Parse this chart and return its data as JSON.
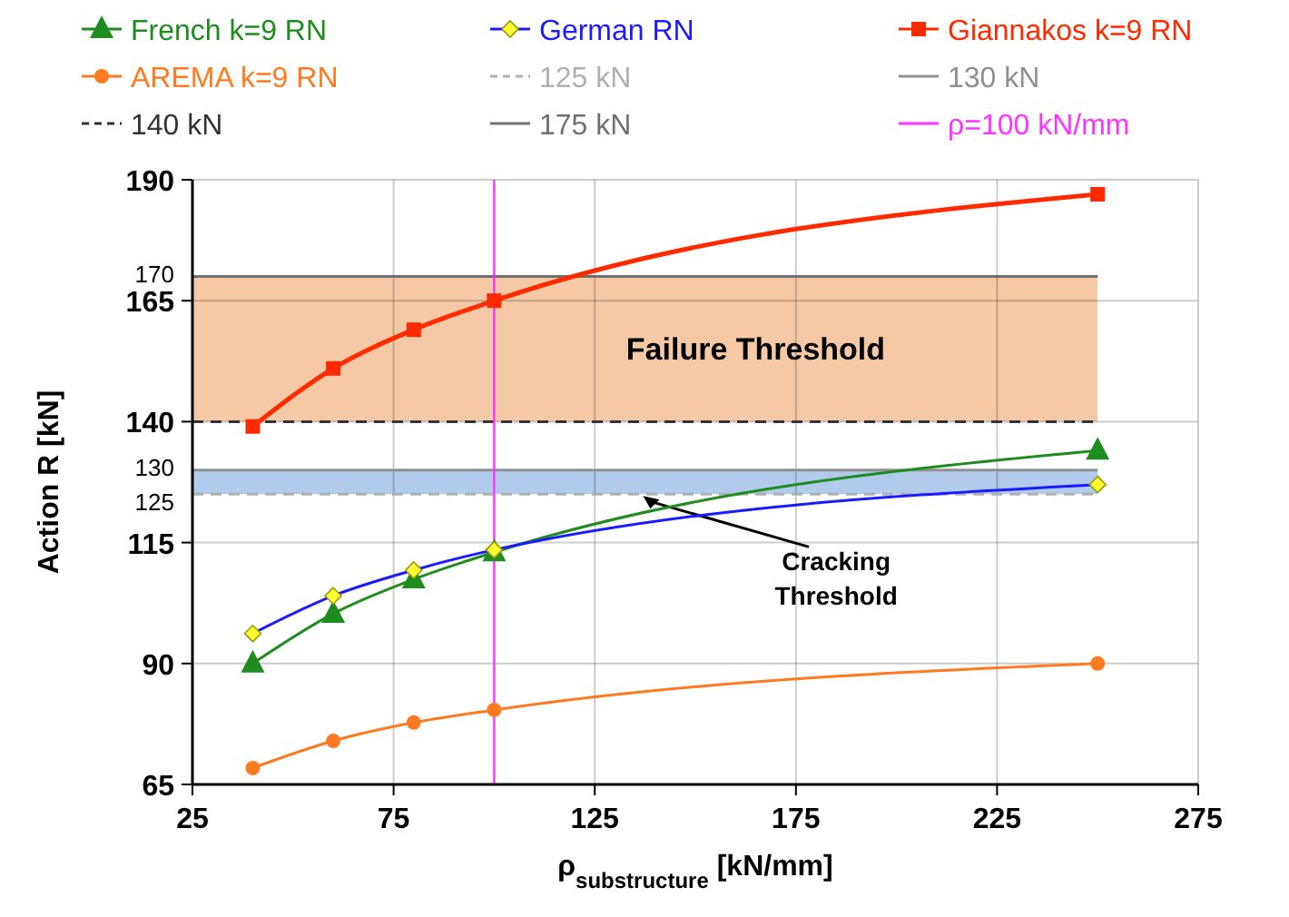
{
  "chart_data": {
    "type": "line",
    "xlabel": "ρ$_{substructure}$ [kN/mm]",
    "ylabel": "Action R  [kN]",
    "x": [
      40,
      60,
      80,
      100,
      250
    ],
    "series": [
      {
        "name": "French k=9 RN",
        "color": "#1e8c1e",
        "marker": "triangle",
        "values": [
          90,
          100.3,
          107.4,
          113,
          134
        ]
      },
      {
        "name": "German RN",
        "color": "#1a1aff",
        "marker": "diamond",
        "values": [
          96.2,
          104,
          109.3,
          113.5,
          127
        ]
      },
      {
        "name": "Giannakos k=9 RN",
        "color": "#ff2a00",
        "marker": "square",
        "values": [
          139,
          151,
          159,
          165,
          187
        ]
      },
      {
        "name": "AREMA k=9 RN",
        "color": "#ff7a1f",
        "marker": "circle",
        "values": [
          68.4,
          74,
          77.8,
          80.4,
          90
        ]
      }
    ],
    "xlim": [
      25,
      275
    ],
    "xticks": [
      25,
      75,
      125,
      175,
      225,
      275
    ],
    "ylim": [
      65,
      190
    ],
    "yticks": [
      65,
      90,
      115,
      140,
      165,
      190,
      {
        "value": 170,
        "label": "170"
      },
      {
        "value": 130,
        "label": "130"
      },
      {
        "value": 125,
        "label": "125"
      }
    ],
    "ref_lines": [
      {
        "axis": "y",
        "value": 125,
        "label": "125 kN",
        "color": "#b0b0b0",
        "line_style": "dashed"
      },
      {
        "axis": "y",
        "value": 130,
        "label": "130 kN",
        "color": "#909090",
        "line_style": "solid"
      },
      {
        "axis": "y",
        "value": 140,
        "label": "140 kN",
        "color": "#333333",
        "line_style": "dashed"
      },
      {
        "axis": "y",
        "value": 170,
        "label": "175 kN",
        "color": "#707070",
        "line_style": "solid"
      },
      {
        "axis": "x",
        "value": 100,
        "label": "ρ=100 kN/mm",
        "color": "#ff33ff",
        "line_style": "solid"
      }
    ],
    "bands": [
      {
        "axis": "y",
        "from": 140,
        "to": 170,
        "label": "Failure Threshold",
        "color": "#f4c39c"
      },
      {
        "axis": "y",
        "from": 125,
        "to": 130,
        "label": "Cracking Threshold",
        "color": "#a9c5ea"
      }
    ],
    "grid": true,
    "legend": "top"
  }
}
